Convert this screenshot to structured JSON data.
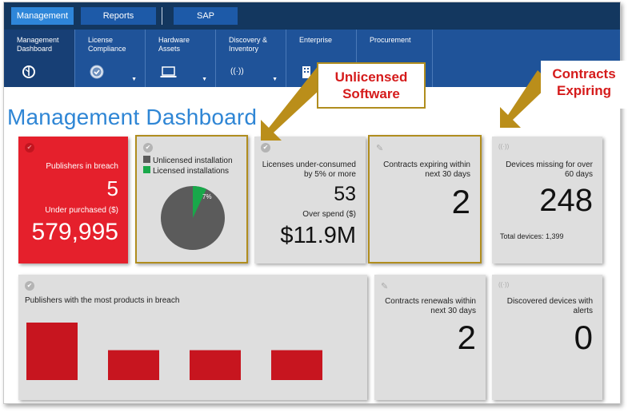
{
  "top_tabs": [
    "Management",
    "Reports",
    "SAP"
  ],
  "sub_nav": [
    {
      "label": "Management\nDashboard",
      "icon": "dashboard-gauge-icon",
      "glyph": "Ⓣ"
    },
    {
      "label": "License\nCompliance",
      "icon": "compliance-check-icon",
      "glyph": "✔"
    },
    {
      "label": "Hardware\nAssets",
      "icon": "laptop-icon",
      "glyph": "▭"
    },
    {
      "label": "Discovery &\nInventory",
      "icon": "wireless-signal-icon",
      "glyph": "((•))"
    },
    {
      "label": "Enterprise",
      "icon": "building-icon",
      "glyph": "▏"
    },
    {
      "label": "Procurement",
      "icon": "",
      "glyph": ""
    }
  ],
  "page_title": "Management Dashboard",
  "annotations": {
    "unlicensed": "Unlicensed\nSoftware",
    "contracts": "Contracts\nExpiring"
  },
  "tiles": {
    "publishers_breach": {
      "label": "Publishers in breach",
      "value": "5",
      "under_label": "Under purchased ($)",
      "under_value": "579,995"
    },
    "unlicensed": {
      "legend": [
        {
          "label": "Unlicensed installation",
          "color": "#5b5b5b"
        },
        {
          "label": "Licensed installations",
          "color": "#19a84a"
        }
      ],
      "pie_label": "7%",
      "licensed_fraction": 0.07
    },
    "underconsumed": {
      "label": "Licenses under-consumed by 5% or more",
      "value": "53",
      "over_label": "Over spend ($)",
      "over_value": "$11.9M"
    },
    "contracts_expiring": {
      "label": "Contracts expiring within next 30 days",
      "value": "2"
    },
    "devices_missing": {
      "label": "Devices missing for over 60 days",
      "value": "248",
      "total": "Total devices: 1,399"
    },
    "publishers_products": {
      "label": "Publishers with the most products in breach",
      "bars": [
        1.0,
        0.52,
        0.52,
        0.52
      ],
      "bar_color": "#c7151f"
    },
    "contract_renewals": {
      "label": "Contracts renewals within next 30 days",
      "value": "2"
    },
    "discovered_alerts": {
      "label": "Discovered devices with alerts",
      "value": "0"
    }
  },
  "colors": {
    "accent": "#2e86d9",
    "nav": "#1f5399",
    "danger": "#e5202c",
    "highlight": "#b08d1e",
    "annotation_arrow": "#ba8e1a"
  }
}
